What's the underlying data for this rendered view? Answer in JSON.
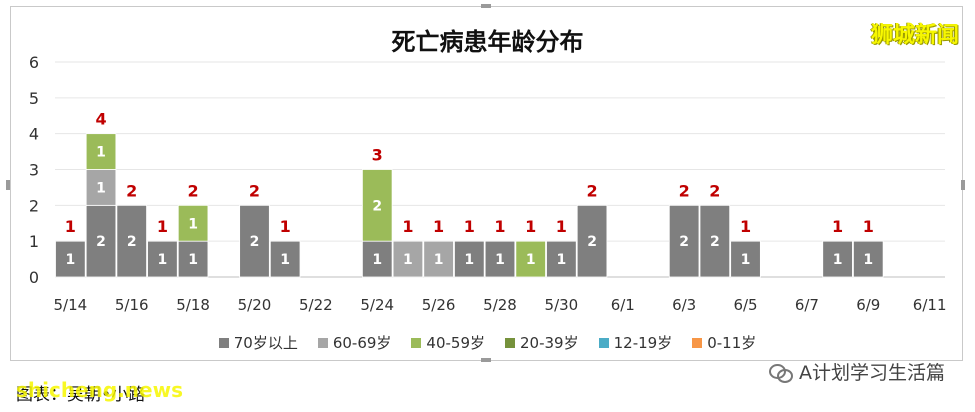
{
  "chart_data": {
    "type": "bar",
    "stacked": true,
    "title": "死亡病患年龄分布",
    "categories": [
      "5/14",
      "5/15",
      "5/16",
      "5/17",
      "5/18",
      "5/19",
      "5/20",
      "5/21",
      "5/22",
      "5/23",
      "5/24",
      "5/25",
      "5/26",
      "5/27",
      "5/28",
      "5/29",
      "5/30",
      "5/31",
      "6/1",
      "6/2",
      "6/3",
      "6/4",
      "6/5",
      "6/6",
      "6/7",
      "6/8",
      "6/9",
      "6/10",
      "6/11"
    ],
    "tick_labels": [
      "5/14",
      "5/16",
      "5/18",
      "5/20",
      "5/22",
      "5/24",
      "5/26",
      "5/28",
      "5/30",
      "6/1",
      "6/3",
      "6/5",
      "6/7",
      "6/9",
      "6/11"
    ],
    "series": [
      {
        "name": "70岁以上",
        "color": "#7f7f7f",
        "values": [
          1,
          2,
          2,
          1,
          1,
          0,
          2,
          1,
          0,
          0,
          1,
          0,
          0,
          1,
          1,
          0,
          1,
          2,
          0,
          0,
          2,
          2,
          1,
          0,
          0,
          1,
          1,
          0,
          0
        ]
      },
      {
        "name": "60-69岁",
        "color": "#a6a6a6",
        "values": [
          0,
          1,
          0,
          0,
          0,
          0,
          0,
          0,
          0,
          0,
          0,
          1,
          1,
          0,
          0,
          0,
          0,
          0,
          0,
          0,
          0,
          0,
          0,
          0,
          0,
          0,
          0,
          0,
          0
        ]
      },
      {
        "name": "40-59岁",
        "color": "#9bbb59",
        "values": [
          0,
          1,
          0,
          0,
          1,
          0,
          0,
          0,
          0,
          0,
          2,
          0,
          0,
          0,
          0,
          1,
          0,
          0,
          0,
          0,
          0,
          0,
          0,
          0,
          0,
          0,
          0,
          0,
          0
        ]
      },
      {
        "name": "20-39岁",
        "color": "#76923c",
        "values": [
          0,
          0,
          0,
          0,
          0,
          0,
          0,
          0,
          0,
          0,
          0,
          0,
          0,
          0,
          0,
          0,
          0,
          0,
          0,
          0,
          0,
          0,
          0,
          0,
          0,
          0,
          0,
          0,
          0
        ]
      },
      {
        "name": "12-19岁",
        "color": "#4bacc6",
        "values": [
          0,
          0,
          0,
          0,
          0,
          0,
          0,
          0,
          0,
          0,
          0,
          0,
          0,
          0,
          0,
          0,
          0,
          0,
          0,
          0,
          0,
          0,
          0,
          0,
          0,
          0,
          0,
          0,
          0
        ]
      },
      {
        "name": "0-11岁",
        "color": "#f79646",
        "values": [
          0,
          0,
          0,
          0,
          0,
          0,
          0,
          0,
          0,
          0,
          0,
          0,
          0,
          0,
          0,
          0,
          0,
          0,
          0,
          0,
          0,
          0,
          0,
          0,
          0,
          0,
          0,
          0,
          0
        ]
      }
    ],
    "totals": [
      1,
      4,
      2,
      1,
      2,
      0,
      2,
      1,
      0,
      0,
      3,
      1,
      1,
      1,
      1,
      1,
      1,
      2,
      0,
      0,
      2,
      2,
      1,
      0,
      0,
      1,
      1,
      0,
      0
    ],
    "ylim": [
      0,
      6
    ],
    "yticks": [
      0,
      1,
      2,
      3,
      4,
      5,
      6
    ],
    "grid": true,
    "legend": "bottom",
    "total_label_color": "#c00000"
  },
  "watermark": "狮城新闻",
  "footer_left": "图表：吴朝•小路",
  "footer_left_wm": "shicheng.news",
  "footer_right": "A计划学习生活篇"
}
